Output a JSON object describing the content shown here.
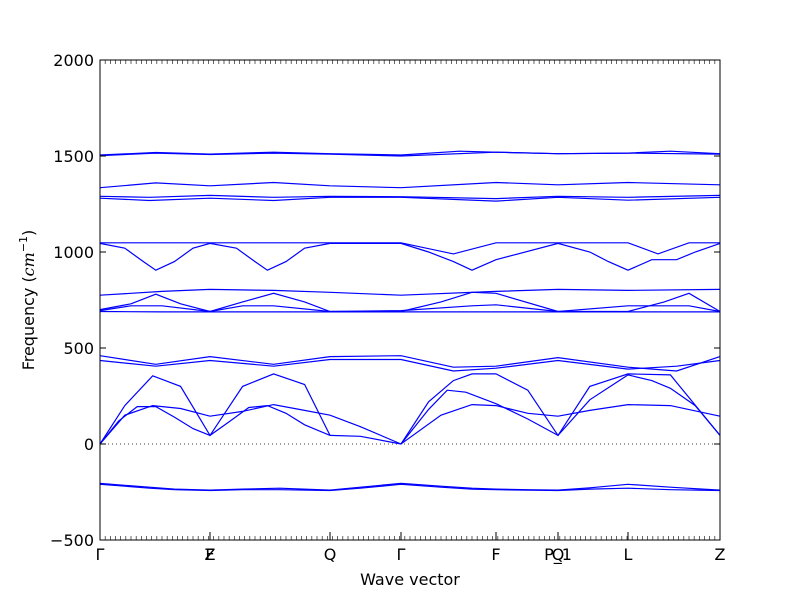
{
  "chart_data": {
    "type": "line",
    "xlabel": "Wave vector",
    "ylabel_prefix": "Frequency (",
    "ylabel_unit_base": "cm",
    "ylabel_unit_exp": "−1",
    "ylabel_suffix": ")",
    "ylim": [
      -500,
      2000
    ],
    "yticks": [
      -500,
      0,
      500,
      1000,
      1500,
      2000
    ],
    "ytick_labels": [
      "−500",
      "0",
      "500",
      "1000",
      "1500",
      "2000"
    ],
    "grid": false,
    "zero_line": "dotted",
    "line_color": "#0000ff",
    "q_points": [
      {
        "label": "Γ",
        "x": 0.0
      },
      {
        "label": "Z",
        "x": 0.1774
      },
      {
        "label": "F",
        "x": 0.1774
      },
      {
        "label": "Q",
        "x": 0.371
      },
      {
        "label": "Γ",
        "x": 0.4855
      },
      {
        "label": "F",
        "x": 0.6387
      },
      {
        "label": "P_1",
        "x": 0.7387
      },
      {
        "label": "Q",
        "x": 0.7387
      },
      {
        "label": "L",
        "x": 0.8516
      },
      {
        "label": "Z",
        "x": 1.0
      }
    ],
    "series": [
      {
        "x": [
          0,
          0.04,
          0.08,
          0.12,
          0.1774,
          0.23,
          0.29,
          0.371,
          0.42,
          0.4855,
          0.55,
          0.6,
          0.6387,
          0.69,
          0.7387,
          0.79,
          0.8516,
          0.92,
          1.0
        ],
        "y": [
          -205,
          -215,
          -225,
          -235,
          -240,
          -235,
          -230,
          -240,
          -225,
          -205,
          -220,
          -230,
          -235,
          -238,
          -240,
          -228,
          -210,
          -225,
          -240
        ]
      },
      {
        "x": [
          0,
          0.04,
          0.08,
          0.12,
          0.1774,
          0.23,
          0.29,
          0.371,
          0.42,
          0.4855,
          0.55,
          0.6,
          0.6387,
          0.69,
          0.7387,
          0.79,
          0.8516,
          0.92,
          1.0
        ],
        "y": [
          -210,
          -220,
          -230,
          -238,
          -242,
          -238,
          -238,
          -242,
          -230,
          -210,
          -225,
          -235,
          -238,
          -240,
          -242,
          -235,
          -230,
          -238,
          -242
        ]
      },
      {
        "x": [
          0,
          0.04,
          0.085,
          0.13,
          0.1774,
          0.23,
          0.28,
          0.33,
          0.371,
          0.42,
          0.4855,
          0.55,
          0.6,
          0.6387,
          0.69,
          0.7387,
          0.79,
          0.8516,
          0.92,
          1.0
        ],
        "y": [
          0,
          150,
          200,
          185,
          145,
          170,
          205,
          175,
          150,
          90,
          0,
          150,
          205,
          200,
          160,
          145,
          175,
          205,
          200,
          145
        ]
      },
      {
        "x": [
          0,
          0.03,
          0.06,
          0.09,
          0.12,
          0.15,
          0.1774,
          0.21,
          0.24,
          0.27,
          0.3,
          0.33,
          0.371,
          0.42,
          0.4855
        ],
        "y": [
          0,
          120,
          195,
          195,
          140,
          80,
          45,
          120,
          190,
          200,
          160,
          100,
          45,
          40,
          0
        ]
      },
      {
        "x": [
          0,
          0.04,
          0.085,
          0.13,
          0.1774,
          0.23,
          0.28,
          0.33,
          0.371
        ],
        "y": [
          0,
          200,
          355,
          300,
          45,
          300,
          365,
          310,
          45
        ]
      },
      {
        "x": [
          0.4855,
          0.53,
          0.56,
          0.59,
          0.6387,
          0.69,
          0.7387,
          0.79,
          0.8516,
          0.89,
          0.92,
          0.96,
          1.0
        ],
        "y": [
          0,
          180,
          280,
          270,
          210,
          130,
          45,
          230,
          360,
          330,
          290,
          200,
          45
        ]
      },
      {
        "x": [
          0.4855,
          0.53,
          0.57,
          0.6,
          0.6387,
          0.69,
          0.7387,
          0.79,
          0.8516,
          0.92,
          1.0
        ],
        "y": [
          0,
          220,
          330,
          365,
          365,
          280,
          45,
          300,
          365,
          360,
          45
        ]
      },
      {
        "x": [
          0,
          0.09,
          0.1774,
          0.28,
          0.371,
          0.4855,
          0.57,
          0.6387,
          0.7387,
          0.8516,
          0.93,
          1.0
        ],
        "y": [
          435,
          405,
          435,
          405,
          440,
          440,
          380,
          395,
          435,
          390,
          405,
          435
        ]
      },
      {
        "x": [
          0,
          0.09,
          0.1774,
          0.28,
          0.371,
          0.4855,
          0.57,
          0.6387,
          0.7387,
          0.8516,
          0.93,
          1.0
        ],
        "y": [
          460,
          415,
          455,
          415,
          455,
          460,
          400,
          405,
          450,
          400,
          380,
          455
        ]
      },
      {
        "x": [
          0,
          0.1,
          0.1774,
          0.28,
          0.371,
          0.4855,
          0.6387,
          0.7387,
          0.8516,
          1.0
        ],
        "y": [
          690,
          688,
          688,
          688,
          688,
          688,
          688,
          688,
          688,
          688
        ]
      },
      {
        "x": [
          0,
          0.05,
          0.1,
          0.1774,
          0.23,
          0.28,
          0.371,
          0.4855,
          0.6,
          0.6387,
          0.7387,
          0.8516,
          0.95,
          1.0
        ],
        "y": [
          695,
          720,
          720,
          690,
          720,
          720,
          690,
          695,
          720,
          725,
          690,
          720,
          720,
          690
        ]
      },
      {
        "x": [
          0,
          0.05,
          0.09,
          0.13,
          0.1774,
          0.23,
          0.28,
          0.33,
          0.371,
          0.4855,
          0.55,
          0.6,
          0.6387,
          0.7387,
          0.8516,
          0.91,
          0.95,
          1.0
        ],
        "y": [
          700,
          730,
          780,
          730,
          690,
          740,
          785,
          740,
          690,
          690,
          740,
          790,
          785,
          690,
          690,
          740,
          785,
          690
        ]
      },
      {
        "x": [
          0,
          0.1,
          0.1774,
          0.28,
          0.371,
          0.4855,
          0.6387,
          0.7387,
          0.8516,
          1.0
        ],
        "y": [
          775,
          795,
          805,
          800,
          790,
          775,
          795,
          805,
          800,
          805
        ]
      },
      {
        "x": [
          0,
          0.04,
          0.07,
          0.09,
          0.12,
          0.15,
          0.1774,
          0.22,
          0.25,
          0.27,
          0.3,
          0.33,
          0.371,
          0.4855,
          0.53,
          0.57,
          0.6,
          0.6387,
          0.7387,
          0.79,
          0.82,
          0.8516,
          0.89,
          0.93,
          0.96,
          1.0
        ],
        "y": [
          1045,
          1020,
          950,
          905,
          950,
          1020,
          1045,
          1020,
          950,
          905,
          950,
          1020,
          1045,
          1045,
          1000,
          950,
          905,
          960,
          1045,
          1000,
          950,
          905,
          960,
          960,
          1000,
          1045
        ]
      },
      {
        "x": [
          0,
          0.1,
          0.1774,
          0.28,
          0.371,
          0.4855,
          0.57,
          0.6387,
          0.7387,
          0.8516,
          0.9,
          0.95,
          1.0
        ],
        "y": [
          1048,
          1048,
          1048,
          1048,
          1048,
          1048,
          990,
          1048,
          1048,
          1048,
          990,
          1048,
          1048
        ]
      },
      {
        "x": [
          0,
          0.08,
          0.1774,
          0.28,
          0.371,
          0.4855,
          0.6387,
          0.7387,
          0.8516,
          1.0
        ],
        "y": [
          1280,
          1268,
          1280,
          1268,
          1285,
          1285,
          1265,
          1285,
          1270,
          1285
        ]
      },
      {
        "x": [
          0,
          0.08,
          0.1774,
          0.28,
          0.371,
          0.4855,
          0.6387,
          0.7387,
          0.8516,
          1.0
        ],
        "y": [
          1290,
          1285,
          1295,
          1285,
          1290,
          1288,
          1278,
          1290,
          1285,
          1295
        ]
      },
      {
        "x": [
          0,
          0.09,
          0.1774,
          0.28,
          0.371,
          0.4855,
          0.6387,
          0.7387,
          0.8516,
          1.0
        ],
        "y": [
          1335,
          1360,
          1345,
          1362,
          1345,
          1335,
          1362,
          1350,
          1362,
          1350
        ]
      },
      {
        "x": [
          0,
          0.09,
          0.1774,
          0.28,
          0.371,
          0.4855,
          0.6387,
          0.7387,
          0.8516,
          1.0
        ],
        "y": [
          1502,
          1515,
          1508,
          1515,
          1510,
          1500,
          1520,
          1512,
          1515,
          1510
        ]
      },
      {
        "x": [
          0,
          0.09,
          0.1774,
          0.28,
          0.371,
          0.4855,
          0.58,
          0.6387,
          0.7387,
          0.8516,
          0.92,
          1.0
        ],
        "y": [
          1505,
          1518,
          1510,
          1520,
          1512,
          1505,
          1525,
          1520,
          1512,
          1515,
          1525,
          1512
        ]
      }
    ]
  }
}
